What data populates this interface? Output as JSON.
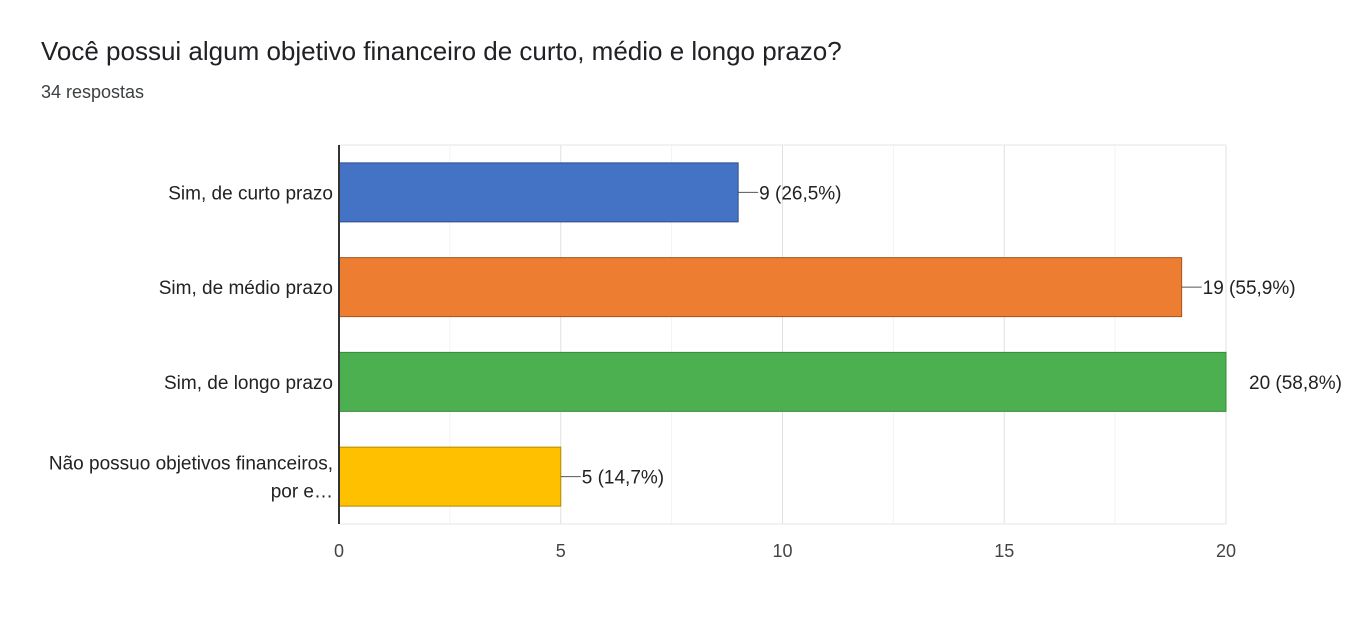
{
  "header": {
    "title": "Você possui algum objetivo financeiro de curto, médio e longo prazo?",
    "responses": "34 respostas"
  },
  "chart_data": {
    "type": "bar",
    "orientation": "horizontal",
    "categories": [
      [
        "Sim, de curto prazo"
      ],
      [
        "Sim, de médio prazo"
      ],
      [
        "Sim, de longo prazo"
      ],
      [
        "Não possuo objetivos financeiros,",
        "por e…"
      ]
    ],
    "values": [
      9,
      19,
      20,
      5
    ],
    "data_labels": [
      "9 (26,5%)",
      "19 (55,9%)",
      "20 (58,8%)",
      "5 (14,7%)"
    ],
    "colors": [
      "#4472c4",
      "#ed7d31",
      "#4caf50",
      "#ffc000"
    ],
    "border_colors": [
      "#2f4f8a",
      "#a35420",
      "#3a8a3d",
      "#b58800"
    ],
    "xlim": [
      0,
      20
    ],
    "xticks": [
      0,
      5,
      10,
      15,
      20
    ],
    "grid": true,
    "legend": "none"
  }
}
